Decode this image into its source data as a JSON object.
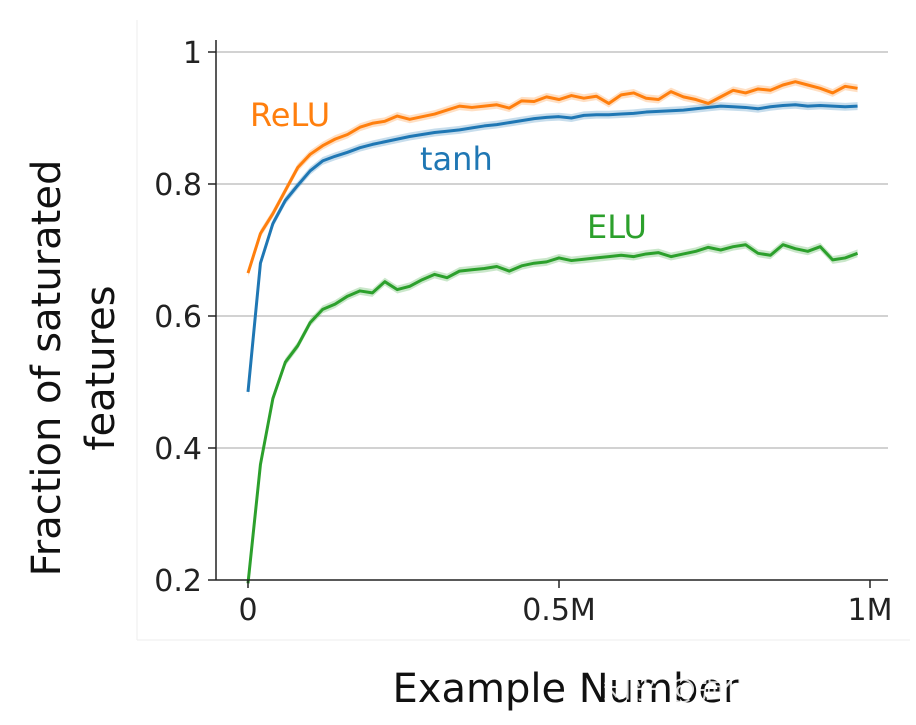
{
  "chart_data": {
    "type": "line",
    "xlabel": "Example Number",
    "ylabel_lines": [
      "Fraction of saturated",
      "features"
    ],
    "xlim": [
      -0.05,
      1.0
    ],
    "ylim": [
      0.2,
      1.0
    ],
    "x_ticks": [
      {
        "value": 0,
        "label": "0"
      },
      {
        "value": 0.5,
        "label": "0.5M"
      },
      {
        "value": 1.0,
        "label": "1M"
      }
    ],
    "y_ticks": [
      {
        "value": 0.2,
        "label": "0.2"
      },
      {
        "value": 0.4,
        "label": "0.4"
      },
      {
        "value": 0.6,
        "label": "0.6"
      },
      {
        "value": 0.8,
        "label": "0.8"
      },
      {
        "value": 1.0,
        "label": "1"
      }
    ],
    "grid": "horizontal",
    "x": [
      0,
      0.02,
      0.04,
      0.06,
      0.08,
      0.1,
      0.12,
      0.14,
      0.16,
      0.18,
      0.2,
      0.22,
      0.24,
      0.26,
      0.28,
      0.3,
      0.32,
      0.34,
      0.36,
      0.38,
      0.4,
      0.42,
      0.44,
      0.46,
      0.48,
      0.5,
      0.52,
      0.54,
      0.56,
      0.58,
      0.6,
      0.62,
      0.64,
      0.66,
      0.68,
      0.7,
      0.72,
      0.74,
      0.76,
      0.78,
      0.8,
      0.82,
      0.84,
      0.86,
      0.88,
      0.9,
      0.92,
      0.94,
      0.96,
      0.98
    ],
    "series": [
      {
        "name": "ReLU",
        "color": "#ff7f0e",
        "values": [
          0.665,
          0.725,
          0.755,
          0.79,
          0.825,
          0.845,
          0.858,
          0.868,
          0.875,
          0.886,
          0.892,
          0.895,
          0.903,
          0.898,
          0.902,
          0.906,
          0.912,
          0.918,
          0.916,
          0.918,
          0.92,
          0.915,
          0.926,
          0.925,
          0.932,
          0.928,
          0.934,
          0.93,
          0.933,
          0.922,
          0.935,
          0.938,
          0.93,
          0.928,
          0.94,
          0.932,
          0.928,
          0.922,
          0.932,
          0.942,
          0.938,
          0.944,
          0.942,
          0.95,
          0.955,
          0.95,
          0.945,
          0.938,
          0.948,
          0.945
        ]
      },
      {
        "name": "tanh",
        "color": "#1f77b4",
        "values": [
          0.485,
          0.68,
          0.74,
          0.775,
          0.798,
          0.82,
          0.835,
          0.842,
          0.848,
          0.855,
          0.86,
          0.864,
          0.868,
          0.872,
          0.875,
          0.878,
          0.88,
          0.882,
          0.885,
          0.888,
          0.89,
          0.893,
          0.896,
          0.899,
          0.901,
          0.902,
          0.9,
          0.904,
          0.905,
          0.905,
          0.906,
          0.907,
          0.909,
          0.91,
          0.911,
          0.912,
          0.914,
          0.916,
          0.918,
          0.917,
          0.916,
          0.914,
          0.917,
          0.919,
          0.92,
          0.918,
          0.919,
          0.918,
          0.917,
          0.918
        ]
      },
      {
        "name": "ELU",
        "color": "#2ca02c",
        "values": [
          0.195,
          0.375,
          0.475,
          0.53,
          0.555,
          0.59,
          0.61,
          0.618,
          0.63,
          0.638,
          0.635,
          0.652,
          0.64,
          0.645,
          0.655,
          0.663,
          0.658,
          0.668,
          0.67,
          0.672,
          0.675,
          0.668,
          0.676,
          0.68,
          0.682,
          0.688,
          0.684,
          0.686,
          0.688,
          0.69,
          0.692,
          0.69,
          0.694,
          0.696,
          0.69,
          0.694,
          0.698,
          0.704,
          0.7,
          0.705,
          0.708,
          0.695,
          0.692,
          0.708,
          0.702,
          0.698,
          0.705,
          0.685,
          0.688,
          0.695
        ]
      }
    ]
  },
  "watermark": "知乎 @强化学习实验室"
}
